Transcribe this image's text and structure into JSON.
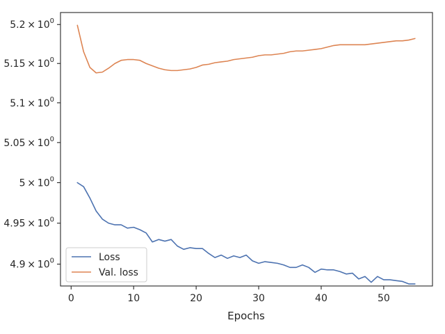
{
  "chart_data": {
    "type": "line",
    "xlabel": "Epochs",
    "ylabel": "",
    "title": "",
    "yscale": "log",
    "xlim": [
      -1.7,
      57.8
    ],
    "ylim": [
      4.8735,
      5.2155
    ],
    "x_ticks": [
      0,
      10,
      20,
      30,
      40,
      50
    ],
    "x_tick_labels": [
      "0",
      "10",
      "20",
      "30",
      "40",
      "50"
    ],
    "y_ticks": [
      4.9,
      4.95,
      5.0,
      5.05,
      5.1,
      5.15,
      5.2
    ],
    "y_tick_labels": [
      {
        "mant": "4.9",
        "exp": "0"
      },
      {
        "mant": "4.95",
        "exp": "0"
      },
      {
        "mant": "5",
        "exp": "0"
      },
      {
        "mant": "5.05",
        "exp": "0"
      },
      {
        "mant": "5.1",
        "exp": "0"
      },
      {
        "mant": "5.15",
        "exp": "0"
      },
      {
        "mant": "5.2",
        "exp": "0"
      }
    ],
    "legend_position": "lower-left",
    "grid": false,
    "x": [
      1,
      2,
      3,
      4,
      5,
      6,
      7,
      8,
      9,
      10,
      11,
      12,
      13,
      14,
      15,
      16,
      17,
      18,
      19,
      20,
      21,
      22,
      23,
      24,
      25,
      26,
      27,
      28,
      29,
      30,
      31,
      32,
      33,
      34,
      35,
      36,
      37,
      38,
      39,
      40,
      41,
      42,
      43,
      44,
      45,
      46,
      47,
      48,
      49,
      50,
      51,
      52,
      53,
      54,
      55
    ],
    "series": [
      {
        "name": "Loss",
        "color": "#4c72b0",
        "values": [
          5.0,
          4.995,
          4.981,
          4.965,
          4.955,
          4.95,
          4.948,
          4.948,
          4.944,
          4.945,
          4.942,
          4.938,
          4.927,
          4.93,
          4.928,
          4.93,
          4.922,
          4.918,
          4.92,
          4.919,
          4.919,
          4.913,
          4.908,
          4.911,
          4.907,
          4.91,
          4.908,
          4.911,
          4.904,
          4.901,
          4.903,
          4.902,
          4.901,
          4.899,
          4.896,
          4.896,
          4.899,
          4.896,
          4.89,
          4.894,
          4.893,
          4.893,
          4.891,
          4.888,
          4.889,
          4.882,
          4.885,
          4.878,
          4.885,
          4.881,
          4.881,
          4.88,
          4.879,
          4.876,
          4.876
        ]
      },
      {
        "name": "Val. loss",
        "color": "#dd8452",
        "values": [
          5.199,
          5.165,
          5.145,
          5.138,
          5.139,
          5.144,
          5.15,
          5.154,
          5.155,
          5.155,
          5.154,
          5.15,
          5.147,
          5.144,
          5.142,
          5.141,
          5.141,
          5.142,
          5.143,
          5.145,
          5.148,
          5.149,
          5.151,
          5.152,
          5.153,
          5.155,
          5.156,
          5.157,
          5.158,
          5.16,
          5.161,
          5.161,
          5.162,
          5.163,
          5.165,
          5.166,
          5.166,
          5.167,
          5.168,
          5.169,
          5.171,
          5.173,
          5.174,
          5.174,
          5.174,
          5.174,
          5.174,
          5.175,
          5.176,
          5.177,
          5.178,
          5.179,
          5.179,
          5.18,
          5.182
        ]
      }
    ]
  }
}
